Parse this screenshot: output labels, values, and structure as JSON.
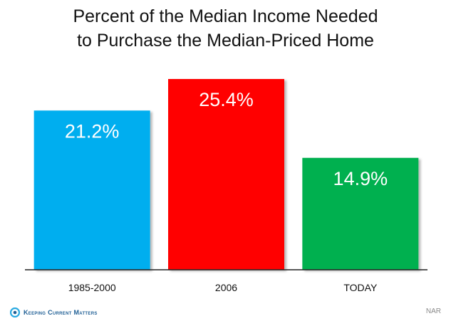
{
  "chart_data": {
    "type": "bar",
    "title": "Percent of the Median Income Needed to Purchase the Median-Priced Home",
    "title_lines": [
      "Percent of the Median Income Needed",
      "to Purchase the Median-Priced Home"
    ],
    "categories": [
      "1985-2000",
      "2006",
      "TODAY"
    ],
    "values": [
      21.2,
      25.4,
      14.9
    ],
    "data_labels": [
      "21.2%",
      "25.4%",
      "14.9%"
    ],
    "colors": [
      "#00aeef",
      "#ff0000",
      "#00b050"
    ],
    "ylim": [
      0,
      25.4
    ],
    "grid": false,
    "legend": "none"
  },
  "footer": {
    "brand": "Keeping Current Matters",
    "source": "NAR",
    "brand_color": "#1f5f95"
  }
}
